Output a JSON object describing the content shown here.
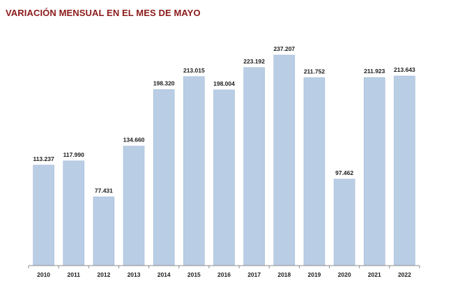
{
  "title": "VARIACIÓN MENSUAL EN EL MES DE MAYO",
  "colors": {
    "title": "#8b1a1a",
    "bar_fill": "#b9cde5",
    "bar_stroke": "#a4bbd8",
    "axis": "#8c8c8c"
  },
  "chart_data": {
    "type": "bar",
    "title": "VARIACIÓN MENSUAL EN EL MES DE MAYO",
    "xlabel": "",
    "ylabel": "",
    "categories": [
      "2010",
      "2011",
      "2012",
      "2013",
      "2014",
      "2015",
      "2016",
      "2017",
      "2018",
      "2019",
      "2020",
      "2021",
      "2022"
    ],
    "values": [
      113237,
      117990,
      77431,
      134660,
      198320,
      213015,
      198004,
      223192,
      237207,
      211752,
      97462,
      211923,
      213643
    ],
    "value_labels": [
      "113.237",
      "117.990",
      "77.431",
      "134.660",
      "198.320",
      "213.015",
      "198.004",
      "223.192",
      "237.207",
      "211.752",
      "97.462",
      "211.923",
      "213.643"
    ],
    "ylim": [
      0,
      237207
    ],
    "grid": false,
    "legend": "none"
  }
}
